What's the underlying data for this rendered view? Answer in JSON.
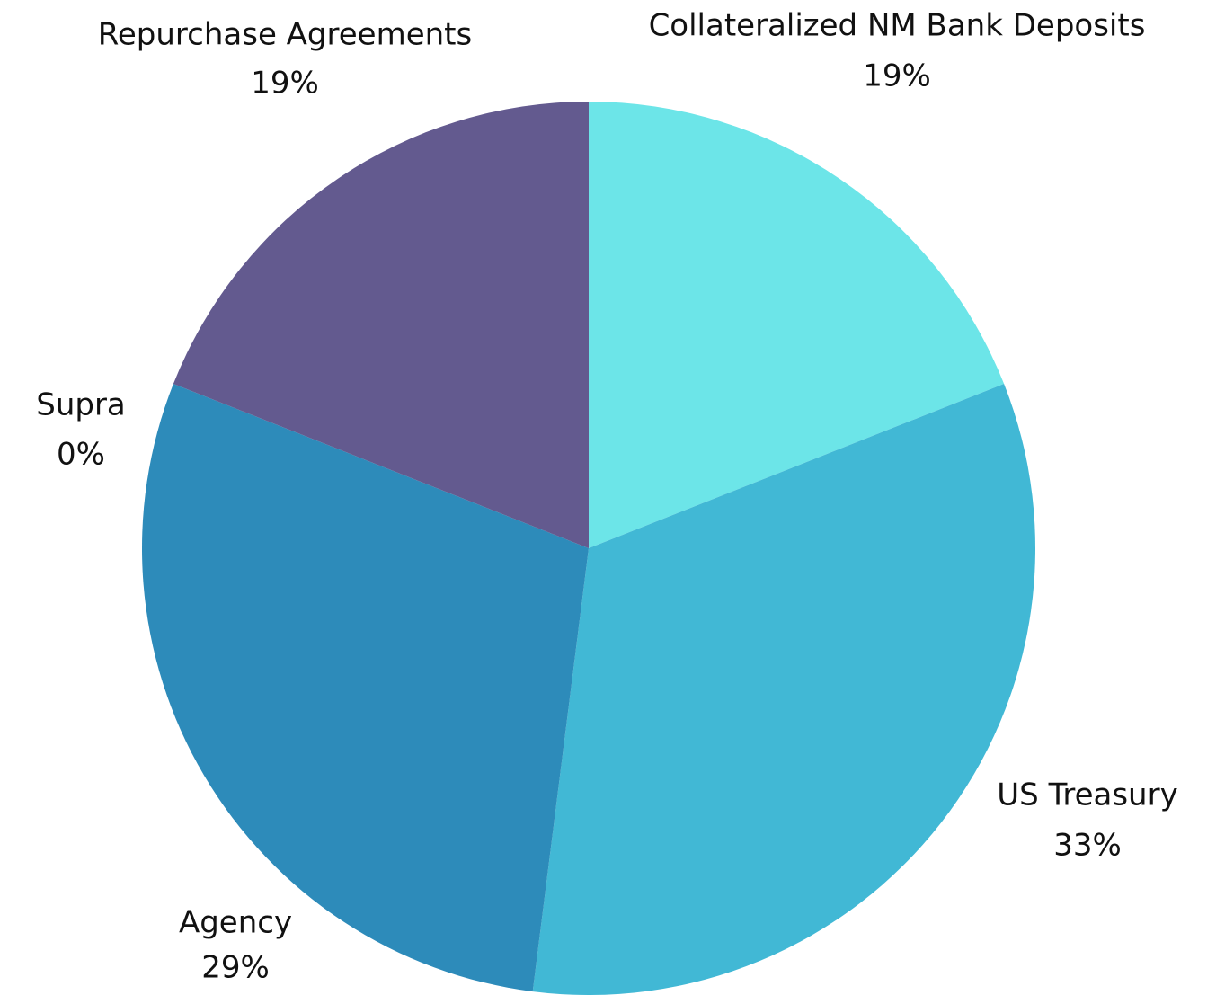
{
  "chart_data": {
    "type": "pie",
    "categories": [
      "Collateralized NM Bank Deposits",
      "US Treasury",
      "Agency",
      "Supra",
      "Repurchase Agreements"
    ],
    "values": [
      19,
      33,
      29,
      0,
      19
    ],
    "value_labels": [
      "19%",
      "33%",
      "29%",
      "0%",
      "19%"
    ],
    "colors": [
      "#6ce5e8",
      "#41b8d5",
      "#2d8bba",
      "#4e6e98",
      "#635a8f"
    ]
  }
}
